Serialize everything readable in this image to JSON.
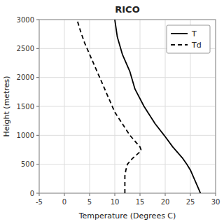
{
  "chart_data": {
    "type": "line",
    "title": "RICO",
    "x_label": "Temperature (Degrees C)",
    "y_label": "Height (metres)",
    "xlim": [
      -5,
      30
    ],
    "ylim": [
      0,
      3000
    ],
    "xticks": [
      -5,
      0,
      5,
      10,
      15,
      20,
      25,
      30
    ],
    "yticks": [
      0,
      500,
      1000,
      1500,
      2000,
      2500,
      3000
    ],
    "grid": true,
    "legend": "upper right",
    "series": [
      {
        "name": "T",
        "color": "#000000",
        "line_style": "solid",
        "x": [
          27.0,
          26.5,
          26.0,
          25.5,
          25.0,
          24.3,
          23.5,
          22.5,
          21.5,
          19.8,
          18.0,
          15.8,
          14.0,
          13.0,
          11.5,
          10.5,
          10.0
        ],
        "values": [
          0,
          100,
          200,
          300,
          400,
          500,
          600,
          700,
          800,
          1000,
          1200,
          1500,
          1800,
          2100,
          2400,
          2700,
          3000
        ]
      },
      {
        "name": "Td",
        "color": "#000000",
        "line_style": "dashed",
        "x": [
          12.0,
          12.0,
          12.0,
          12.0,
          12.2,
          12.5,
          13.5,
          14.8,
          15.2,
          15.0,
          14.0,
          13.0,
          11.5,
          10.0,
          9.0,
          8.0,
          7.0,
          6.0,
          5.0,
          4.0,
          3.2,
          2.5
        ],
        "values": [
          0,
          100,
          200,
          300,
          400,
          500,
          600,
          700,
          750,
          800,
          900,
          1000,
          1200,
          1400,
          1600,
          1800,
          2000,
          2200,
          2400,
          2600,
          2800,
          3000
        ]
      }
    ]
  }
}
